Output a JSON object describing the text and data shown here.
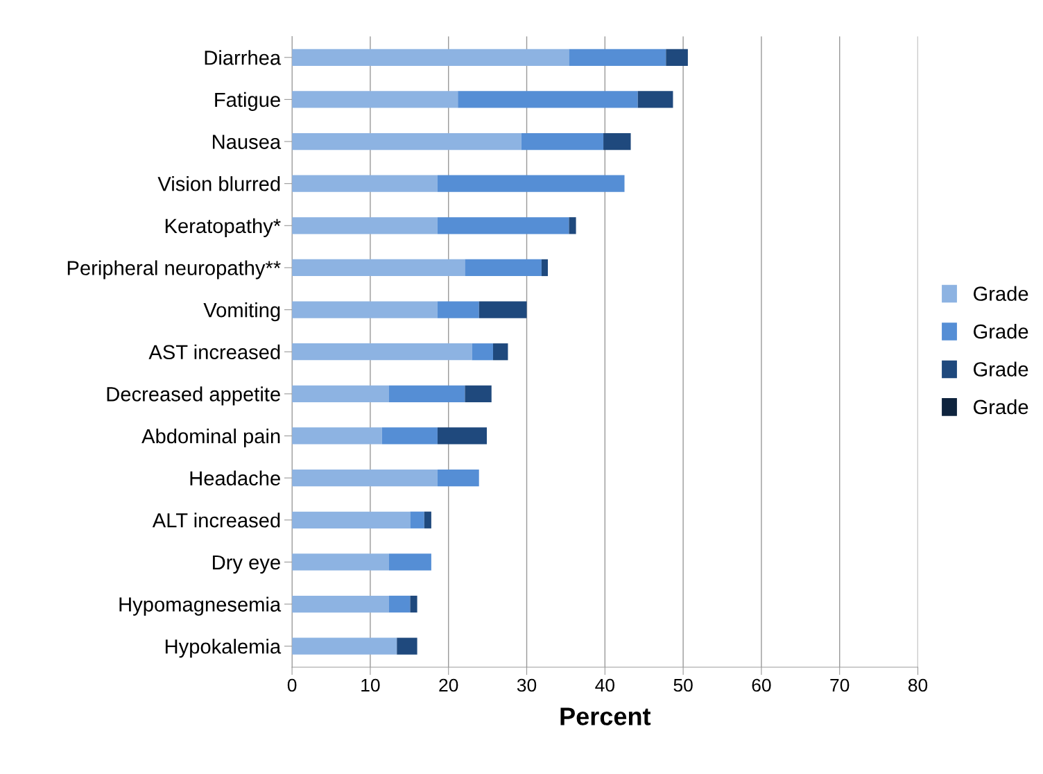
{
  "chart_data": {
    "type": "bar",
    "orientation": "horizontal",
    "stacked": true,
    "xlabel": "Percent",
    "categories": [
      "Diarrhea",
      "Fatigue",
      "Nausea",
      "Vision blurred",
      "Keratopathy*",
      "Peripheral neuropathy**",
      "Vomiting",
      "AST increased",
      "Decreased appetite",
      "Abdominal pain",
      "Headache",
      "ALT increased",
      "Dry eye",
      "Hypomagnesemia",
      "Hypokalemia"
    ],
    "series": [
      {
        "name": "Grade",
        "color": "#8db3e2",
        "values": [
          35.4,
          21.2,
          29.3,
          18.6,
          18.6,
          22.1,
          18.6,
          23.0,
          12.4,
          11.5,
          18.6,
          15.1,
          12.4,
          12.4,
          13.4
        ]
      },
      {
        "name": "Grade",
        "color": "#558ed5",
        "values": [
          12.4,
          23.0,
          10.5,
          23.9,
          16.8,
          9.8,
          5.3,
          2.7,
          9.7,
          7.1,
          5.3,
          1.8,
          5.4,
          2.7,
          0
        ]
      },
      {
        "name": "Grade",
        "color": "#1f497d",
        "values": [
          2.8,
          4.5,
          3.5,
          0,
          0.9,
          0.8,
          6.1,
          1.9,
          3.4,
          6.3,
          0,
          0.9,
          0,
          0.9,
          2.6
        ]
      },
      {
        "name": "Grade",
        "color": "#0f243e",
        "values": [
          0,
          0,
          0,
          0,
          0,
          0,
          0,
          0,
          0,
          0,
          0,
          0,
          0,
          0,
          0
        ]
      }
    ],
    "xlim": [
      0,
      80
    ],
    "xticks": [
      0,
      10,
      20,
      30,
      40,
      50,
      60,
      70,
      80
    ],
    "grid": "x",
    "legend": "right"
  }
}
